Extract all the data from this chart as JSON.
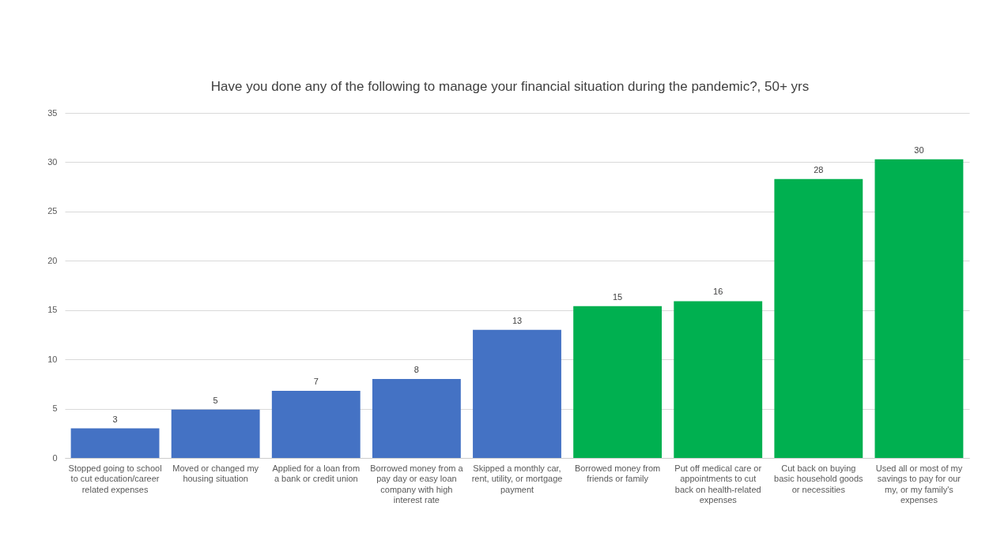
{
  "chart_data": {
    "type": "bar",
    "title": "Have you done any of the following to manage your financial situation during the pandemic?, 50+ yrs",
    "categories": [
      "Stopped going to school to cut education/career related expenses",
      "Moved or changed my housing situation",
      "Applied for a loan from a bank or credit union",
      "Borrowed money from a pay day or easy loan company with high interest rate",
      "Skipped a monthly car, rent, utility, or mortgage payment",
      "Borrowed money from friends or family",
      "Put off medical care or appointments to cut back on health-related expenses",
      "Cut back on buying basic household goods or necessities",
      "Used all or most of my savings to pay for our my, or my family's expenses"
    ],
    "values": [
      3,
      4.9,
      6.8,
      8,
      13,
      15.4,
      15.9,
      28.3,
      30.3
    ],
    "value_labels": [
      "3",
      "5",
      "7",
      "8",
      "13",
      "15",
      "16",
      "28",
      "30"
    ],
    "colors": [
      "#4472c4",
      "#4472c4",
      "#4472c4",
      "#4472c4",
      "#4472c4",
      "#00b050",
      "#00b050",
      "#00b050",
      "#00b050"
    ],
    "ylim": [
      0,
      35
    ],
    "yticks": [
      0,
      5,
      10,
      15,
      20,
      25,
      30,
      35
    ],
    "grid": "y"
  }
}
